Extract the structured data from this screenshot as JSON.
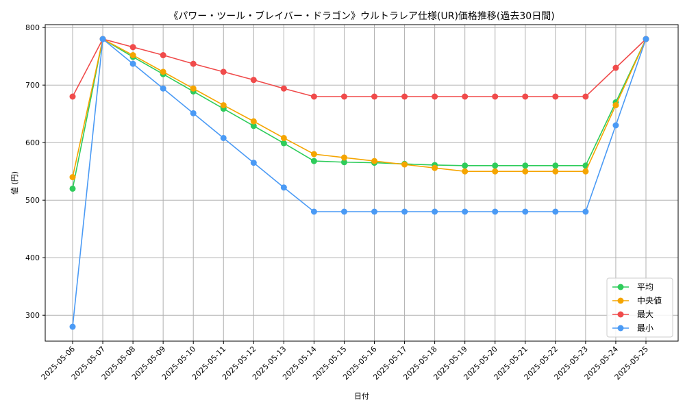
{
  "chart_data": {
    "type": "line",
    "title": "《パワー・ツール・ブレイバー・ドラゴン》ウルトラレア仕様(UR)価格推移(過去30日間)",
    "xlabel": "日付",
    "ylabel": "値 (円)",
    "ylim": [
      255,
      805
    ],
    "yticks": [
      300,
      400,
      500,
      600,
      700,
      800
    ],
    "grid": true,
    "legend_position": "bottom-right",
    "categories": [
      "2025-05-06",
      "2025-05-07",
      "2025-05-08",
      "2025-05-09",
      "2025-05-10",
      "2025-05-11",
      "2025-05-12",
      "2025-05-13",
      "2025-05-14",
      "2025-05-15",
      "2025-05-16",
      "2025-05-17",
      "2025-05-18",
      "2025-05-19",
      "2025-05-20",
      "2025-05-21",
      "2025-05-22",
      "2025-05-23",
      "2025-05-24",
      "2025-05-25"
    ],
    "series": [
      {
        "name": "平均",
        "color": "#2ecc5b",
        "values": [
          520,
          780,
          749,
          719,
          689,
          659,
          629,
          599,
          568,
          566,
          565,
          563,
          561,
          560,
          560,
          560,
          560,
          560,
          670,
          780
        ]
      },
      {
        "name": "中央値",
        "color": "#f5a500",
        "values": [
          540,
          780,
          752,
          723,
          694,
          665,
          637,
          608,
          580,
          574,
          568,
          562,
          556,
          550,
          550,
          550,
          550,
          550,
          665,
          780
        ]
      },
      {
        "name": "最大",
        "color": "#f04b4b",
        "values": [
          680,
          780,
          766,
          752,
          737,
          723,
          709,
          694,
          680,
          680,
          680,
          680,
          680,
          680,
          680,
          680,
          680,
          680,
          730,
          780
        ]
      },
      {
        "name": "最小",
        "color": "#4a9af5",
        "values": [
          280,
          780,
          737,
          694,
          651,
          608,
          565,
          522,
          480,
          480,
          480,
          480,
          480,
          480,
          480,
          480,
          480,
          480,
          630,
          780
        ]
      }
    ]
  }
}
